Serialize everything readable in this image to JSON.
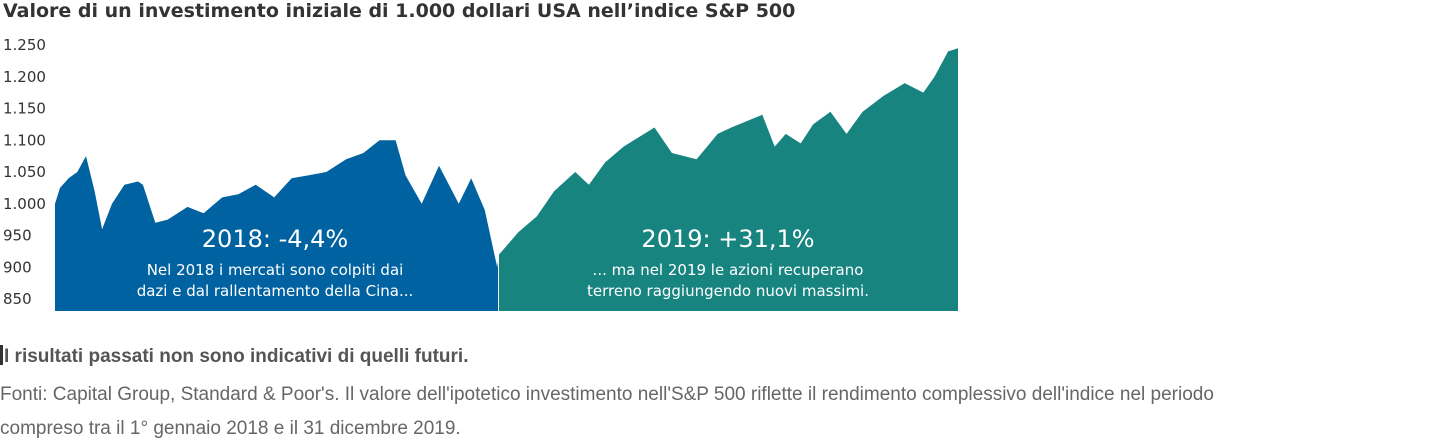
{
  "chart_data": {
    "type": "area",
    "title": "Valore di un investimento iniziale di 1.000 dollari USA nell’indice S&P 500",
    "xlabel": "",
    "ylabel": "",
    "ylim": [
      830,
      1260
    ],
    "y_ticks": [
      850,
      900,
      950,
      1000,
      1050,
      1100,
      1150,
      1200,
      1250
    ],
    "y_tick_labels": [
      "850",
      "900",
      "950",
      "1.000",
      "1.050",
      "1.100",
      "1.150",
      "1.200",
      "1.250"
    ],
    "grid": false,
    "legend": "none",
    "x_range": [
      "2018-01-01",
      "2019-12-31"
    ],
    "series": [
      {
        "color": "#0062a0",
        "x": [
          "2018-01-01",
          "2018-01-05",
          "2018-01-12",
          "2018-01-19",
          "2018-01-26",
          "2018-02-02",
          "2018-02-08",
          "2018-02-16",
          "2018-02-26",
          "2018-03-09",
          "2018-03-13",
          "2018-03-23",
          "2018-04-02",
          "2018-04-18",
          "2018-05-01",
          "2018-05-16",
          "2018-05-29",
          "2018-06-12",
          "2018-06-27",
          "2018-07-11",
          "2018-07-25",
          "2018-08-08",
          "2018-08-24",
          "2018-09-07",
          "2018-09-20",
          "2018-10-03",
          "2018-10-11",
          "2018-10-24",
          "2018-11-07",
          "2018-11-23",
          "2018-12-03",
          "2018-12-14",
          "2018-12-24",
          "2018-12-31"
        ],
        "values": [
          1000,
          1025,
          1040,
          1050,
          1075,
          1020,
          960,
          1000,
          1030,
          1035,
          1030,
          970,
          975,
          995,
          985,
          1010,
          1015,
          1030,
          1010,
          1040,
          1045,
          1050,
          1070,
          1080,
          1100,
          1100,
          1045,
          1000,
          1060,
          1000,
          1040,
          990,
          900,
          910
        ]
      },
      {
        "color": "#178480",
        "x": [
          "2019-01-01",
          "2019-01-10",
          "2019-01-25",
          "2019-02-08",
          "2019-02-25",
          "2019-03-08",
          "2019-03-21",
          "2019-04-05",
          "2019-04-30",
          "2019-05-14",
          "2019-06-03",
          "2019-06-20",
          "2019-07-01",
          "2019-07-26",
          "2019-08-05",
          "2019-08-14",
          "2019-08-26",
          "2019-09-05",
          "2019-09-19",
          "2019-10-02",
          "2019-10-15",
          "2019-11-01",
          "2019-11-18",
          "2019-12-03",
          "2019-12-12",
          "2019-12-23",
          "2019-12-31"
        ],
        "values": [
          920,
          955,
          980,
          1020,
          1050,
          1030,
          1065,
          1090,
          1120,
          1080,
          1070,
          1110,
          1120,
          1140,
          1090,
          1110,
          1095,
          1125,
          1145,
          1110,
          1145,
          1170,
          1190,
          1175,
          1200,
          1240,
          1245
        ]
      }
    ],
    "annotations": [
      {
        "headline": "2018: -4,4%",
        "lines": [
          "Nel 2018 i mercati sono colpiti dai",
          "dazi e dal rallentamento della Cina..."
        ]
      },
      {
        "headline": "2019: +31,1%",
        "lines": [
          "... ma nel 2019 le azioni recuperano",
          "terreno raggiungendo nuovi massimi."
        ]
      }
    ]
  },
  "disclaimer": "I risultati passati non sono indicativi di quelli futuri.",
  "sources": {
    "line1": "Fonti: Capital Group, Standard & Poor's. Il valore dell'ipotetico investimento nell'S&P 500 riflette il rendimento complessivo dell'indice nel periodo",
    "line2": "compreso tra il 1° gennaio 2018 e il 31 dicembre 2019."
  }
}
